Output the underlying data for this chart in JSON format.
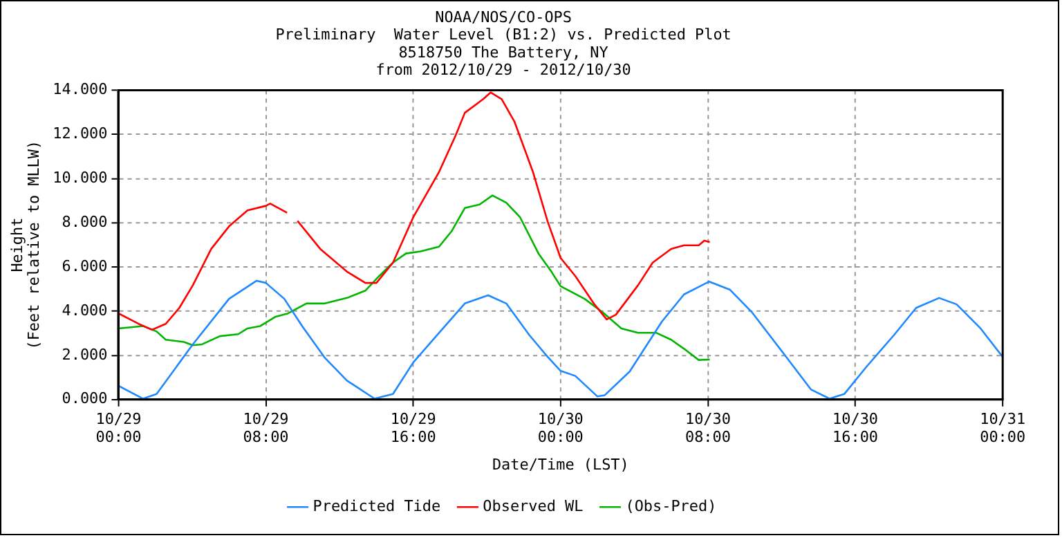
{
  "chart_data": {
    "type": "line",
    "title": "NOAA/NOS/CO-OPS\nPreliminary  Water Level (B1:2) vs. Predicted Plot\n8518750 The Battery, NY\nfrom 2012/10/29 - 2012/10/30",
    "xlabel": "Date/Time (LST)",
    "ylabel": "Height\n(Feet relative to MLLW)",
    "xlim": [
      "2012-10-29T00:00",
      "2012-10-31T00:00"
    ],
    "xticks": [
      {
        "value": "2012-10-29T00:00",
        "label": "10/29\n00:00"
      },
      {
        "value": "2012-10-29T08:00",
        "label": "10/29\n08:00"
      },
      {
        "value": "2012-10-29T16:00",
        "label": "10/29\n16:00"
      },
      {
        "value": "2012-10-30T00:00",
        "label": "10/30\n00:00"
      },
      {
        "value": "2012-10-30T08:00",
        "label": "10/30\n08:00"
      },
      {
        "value": "2012-10-30T16:00",
        "label": "10/30\n16:00"
      },
      {
        "value": "2012-10-31T00:00",
        "label": "10/31\n00:00"
      }
    ],
    "ylim": [
      0,
      14
    ],
    "yticks": [
      {
        "value": 0,
        "label": "0.000"
      },
      {
        "value": 2,
        "label": "2.000"
      },
      {
        "value": 4,
        "label": "4.000"
      },
      {
        "value": 6,
        "label": "6.000"
      },
      {
        "value": 8,
        "label": "8.000"
      },
      {
        "value": 10,
        "label": "10.000"
      },
      {
        "value": 12,
        "label": "12.000"
      },
      {
        "value": 14,
        "label": "14.000"
      }
    ],
    "grid": true,
    "legend": "bottom",
    "marker": "none",
    "line_style": "solid",
    "series": [
      {
        "name": "Predicted Tide",
        "color": "#1e88ff",
        "x": [
          "2012-10-29T00:00",
          "2012-10-29T01:20",
          "2012-10-29T02:04",
          "2012-10-29T04:02",
          "2012-10-29T06:00",
          "2012-10-29T07:30",
          "2012-10-29T08:00",
          "2012-10-29T09:00",
          "2012-10-29T09:58",
          "2012-10-29T11:12",
          "2012-10-29T12:24",
          "2012-10-29T13:54",
          "2012-10-29T14:54",
          "2012-10-29T16:00",
          "2012-10-29T17:24",
          "2012-10-29T18:48",
          "2012-10-29T20:04",
          "2012-10-29T21:03",
          "2012-10-29T22:18",
          "2012-10-29T23:18",
          "2012-10-30T00:00",
          "2012-10-30T00:48",
          "2012-10-30T02:00",
          "2012-10-30T02:24",
          "2012-10-30T03:45",
          "2012-10-30T05:30",
          "2012-10-30T06:42",
          "2012-10-30T08:04",
          "2012-10-30T09:12",
          "2012-10-30T10:24",
          "2012-10-30T12:06",
          "2012-10-30T13:36",
          "2012-10-30T14:36",
          "2012-10-30T15:24",
          "2012-10-30T16:36",
          "2012-10-30T18:06",
          "2012-10-30T19:18",
          "2012-10-30T20:33",
          "2012-10-30T21:30",
          "2012-10-30T22:48",
          "2012-10-31T00:00"
        ],
        "values": [
          0.62,
          0.04,
          0.25,
          2.5,
          4.56,
          5.38,
          5.28,
          4.56,
          3.33,
          1.89,
          0.86,
          0.04,
          0.25,
          1.68,
          3.02,
          4.35,
          4.72,
          4.35,
          2.92,
          1.93,
          1.3,
          1.07,
          0.14,
          0.2,
          1.27,
          3.53,
          4.76,
          5.34,
          4.97,
          3.94,
          2.09,
          0.45,
          0.04,
          0.25,
          1.48,
          2.92,
          4.15,
          4.6,
          4.31,
          3.22,
          1.93
        ]
      },
      {
        "name": "Observed WL",
        "color": "#ff0000",
        "x": [
          "2012-10-29T00:00",
          "2012-10-29T01:05",
          "2012-10-29T01:49",
          "2012-10-29T02:34",
          "2012-10-29T03:18",
          "2012-10-29T04:02",
          "2012-10-29T05:02",
          "2012-10-29T06:00",
          "2012-10-29T07:00",
          "2012-10-29T08:00",
          "2012-10-29T08:14",
          "2012-10-29T09:09",
          "2012-10-29T09:27",
          "2012-10-29T09:43",
          "2012-10-29T10:57",
          "2012-10-29T12:24",
          "2012-10-29T13:24",
          "2012-10-29T14:00",
          "2012-10-29T14:54",
          "2012-10-29T16:00",
          "2012-10-29T17:24",
          "2012-10-29T18:18",
          "2012-10-29T18:48",
          "2012-10-29T19:48",
          "2012-10-29T20:12",
          "2012-10-29T20:48",
          "2012-10-29T21:30",
          "2012-10-29T22:30",
          "2012-10-29T23:18",
          "2012-10-30T00:00",
          "2012-10-30T00:48",
          "2012-10-30T01:48",
          "2012-10-30T02:30",
          "2012-10-30T03:00",
          "2012-10-30T04:12",
          "2012-10-30T05:00",
          "2012-10-30T06:00",
          "2012-10-30T06:42",
          "2012-10-30T07:30",
          "2012-10-30T07:48",
          "2012-10-30T08:06"
        ],
        "values": [
          3.9,
          3.43,
          3.16,
          3.43,
          4.15,
          5.17,
          6.82,
          7.84,
          8.56,
          8.77,
          8.87,
          8.46,
          null,
          8.09,
          6.82,
          5.79,
          5.28,
          5.28,
          6.2,
          8.25,
          10.3,
          11.95,
          12.98,
          13.6,
          13.9,
          13.6,
          12.57,
          10.3,
          8.05,
          6.41,
          5.59,
          4.35,
          3.63,
          3.84,
          5.17,
          6.2,
          6.82,
          6.98,
          6.98,
          7.19,
          7.13
        ]
      },
      {
        "name": "(Obs-Pred)",
        "color": "#00b400",
        "x": [
          "2012-10-29T00:00",
          "2012-10-29T01:20",
          "2012-10-29T02:04",
          "2012-10-29T02:34",
          "2012-10-29T03:33",
          "2012-10-29T04:02",
          "2012-10-29T04:32",
          "2012-10-29T05:30",
          "2012-10-29T06:30",
          "2012-10-29T07:00",
          "2012-10-29T07:42",
          "2012-10-29T08:30",
          "2012-10-29T09:12",
          "2012-10-29T10:12",
          "2012-10-29T11:12",
          "2012-10-29T12:24",
          "2012-10-29T13:24",
          "2012-10-29T14:09",
          "2012-10-29T14:54",
          "2012-10-29T15:36",
          "2012-10-29T16:24",
          "2012-10-29T17:24",
          "2012-10-29T18:06",
          "2012-10-29T18:48",
          "2012-10-29T19:36",
          "2012-10-29T20:18",
          "2012-10-29T21:03",
          "2012-10-29T21:48",
          "2012-10-29T22:48",
          "2012-10-29T23:30",
          "2012-10-30T00:00",
          "2012-10-30T01:18",
          "2012-10-30T02:18",
          "2012-10-30T03:18",
          "2012-10-30T04:12",
          "2012-10-30T05:12",
          "2012-10-30T06:00",
          "2012-10-30T06:42",
          "2012-10-30T07:30",
          "2012-10-30T08:06"
        ],
        "values": [
          3.22,
          3.33,
          3.08,
          2.71,
          2.61,
          2.46,
          2.5,
          2.87,
          2.96,
          3.22,
          3.33,
          3.74,
          3.9,
          4.35,
          4.35,
          4.6,
          4.93,
          5.59,
          6.2,
          6.61,
          6.71,
          6.92,
          7.64,
          8.67,
          8.83,
          9.24,
          8.91,
          8.25,
          6.61,
          5.79,
          5.13,
          4.56,
          3.94,
          3.22,
          3.02,
          3.02,
          2.71,
          2.3,
          1.79,
          1.81
        ]
      }
    ]
  }
}
